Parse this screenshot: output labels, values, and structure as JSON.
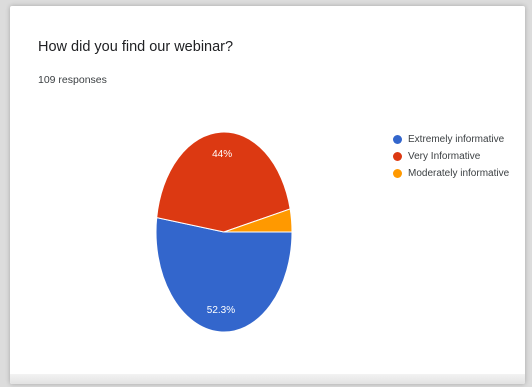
{
  "question": "How did you find our webinar?",
  "responses": "109 responses",
  "chart_data": {
    "type": "pie",
    "labels": [
      "Extremely informative",
      "Very Informative",
      "Moderately informative"
    ],
    "values": [
      52.3,
      44,
      3.7
    ],
    "value_labels": [
      "52.3%",
      "44%",
      ""
    ],
    "colors": [
      "#3366cc",
      "#dc3912",
      "#ff9900"
    ],
    "legend_position": "right"
  }
}
